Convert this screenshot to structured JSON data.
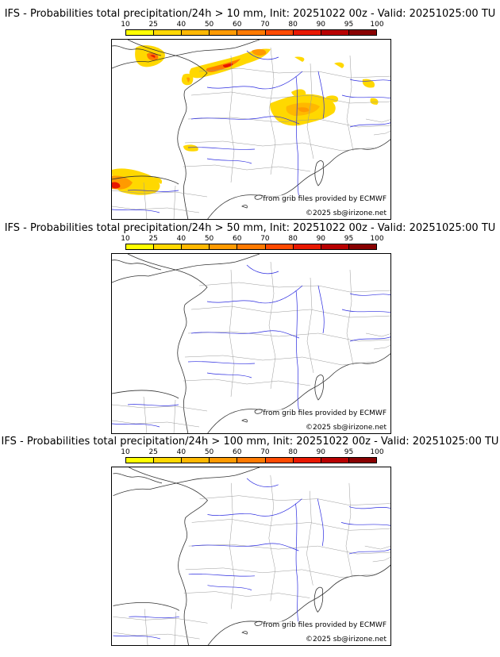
{
  "colorbar": {
    "ticks": [
      "10",
      "25",
      "40",
      "50",
      "60",
      "70",
      "80",
      "90",
      "95",
      "100"
    ],
    "colors": [
      "#ffff00",
      "#ffd800",
      "#ffb800",
      "#ff9a00",
      "#ff7a00",
      "#ff4a00",
      "#e81800",
      "#b80000",
      "#880000",
      "#580000"
    ]
  },
  "panels": [
    {
      "title": "IFS - Probabilities total precipitation/24h > 10 mm, Init: 20251022 00z - Valid: 20251025:00 TU",
      "threshold_mm": 10,
      "has_precip": true
    },
    {
      "title": "IFS - Probabilities total precipitation/24h > 50 mm, Init: 20251022 00z - Valid: 20251025:00 TU",
      "threshold_mm": 50,
      "has_precip": false
    },
    {
      "title": "IFS - Probabilities total precipitation/24h > 100 mm, Init: 20251022 00z - Valid: 20251025:00 TU",
      "threshold_mm": 100,
      "has_precip": false
    }
  ],
  "credit": "from grib files provided by ECMWF",
  "copyright": "©2025 sb@irizone.net",
  "rivers_color": "#2a2ae0",
  "borders_color": "#9a9a9a"
}
